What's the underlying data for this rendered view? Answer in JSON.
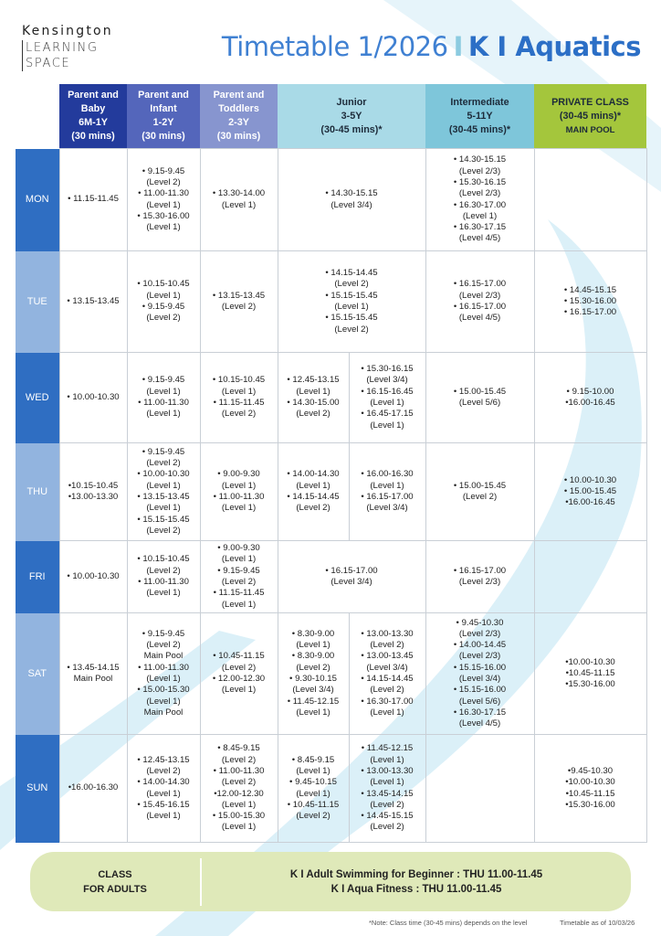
{
  "logo": {
    "line1": "Kensington",
    "line2": "LEARNING",
    "line3": "SPACE"
  },
  "title": {
    "main": "Timetable 1/2026",
    "separator": "I",
    "brand": "K I Aquatics"
  },
  "colors": {
    "title": "#3f80d2",
    "day_dark": "#2f6ec2",
    "day_light": "#92b4df",
    "parent_baby": "#233b9c",
    "parent_infant": "#5466bb",
    "parent_toddlers": "#8795cf",
    "junior": "#a9dae7",
    "intermediate": "#7ec6da",
    "private": "#a4c63c",
    "adults_box": "#dfe9b9"
  },
  "headers": [
    [
      "Parent and",
      "Baby",
      "6M-1Y",
      "(30 mins)"
    ],
    [
      "Parent and",
      "Infant",
      "1-2Y",
      "(30 mins)"
    ],
    [
      "Parent and",
      "Toddlers",
      "2-3Y",
      "(30 mins)"
    ],
    [
      "Junior",
      "3-5Y",
      "(30-45 mins)*"
    ],
    [
      "Intermediate",
      "5-11Y",
      "(30-45 mins)*"
    ],
    [
      "PRIVATE CLASS",
      "(30-45 mins)*",
      "MAIN POOL"
    ]
  ],
  "rows": [
    {
      "day": "MON",
      "cells": [
        [
          "• 11.15-11.45"
        ],
        [
          "• 9.15-9.45",
          "(Level 2)",
          "• 11.00-11.30",
          "(Level 1)",
          "• 15.30-16.00",
          "(Level 1)"
        ],
        [
          "• 13.30-14.00",
          "(Level 1)"
        ],
        [
          [
            "• 14.30-15.15",
            "(Level 3/4)"
          ]
        ],
        [
          "• 14.30-15.15",
          "(Level 2/3)",
          "• 15.30-16.15",
          "(Level 2/3)",
          "• 16.30-17.00",
          "(Level 1)",
          "• 16.30-17.15",
          "(Level 4/5)"
        ],
        []
      ]
    },
    {
      "day": "TUE",
      "cells": [
        [
          "• 13.15-13.45"
        ],
        [
          "• 10.15-10.45",
          "(Level 1)",
          "• 9.15-9.45",
          "(Level 2)"
        ],
        [
          "• 13.15-13.45",
          "(Level 2)"
        ],
        [
          [
            "• 14.15-14.45",
            "(Level 2)",
            "• 15.15-15.45",
            "(Level 1)",
            "• 15.15-15.45",
            "(Level 2)"
          ]
        ],
        [
          "• 16.15-17.00",
          "(Level 2/3)",
          "• 16.15-17.00",
          "(Level 4/5)"
        ],
        [
          "• 14.45-15.15",
          "• 15.30-16.00",
          "• 16.15-17.00"
        ]
      ]
    },
    {
      "day": "WED",
      "cells": [
        [
          "• 10.00-10.30"
        ],
        [
          "• 9.15-9.45",
          "(Level 1)",
          "• 11.00-11.30",
          "(Level 1)"
        ],
        [
          "• 10.15-10.45",
          "(Level 1)",
          "• 11.15-11.45",
          "(Level 2)"
        ],
        [
          [
            "• 12.45-13.15",
            "(Level 1)",
            "• 14.30-15.00",
            "(Level 2)"
          ],
          [
            "• 15.30-16.15",
            "(Level 3/4)",
            "• 16.15-16.45",
            "(Level 1)",
            "• 16.45-17.15",
            "(Level 1)"
          ]
        ],
        [
          "• 15.00-15.45",
          "(Level 5/6)"
        ],
        [
          "• 9.15-10.00",
          "•16.00-16.45"
        ]
      ]
    },
    {
      "day": "THU",
      "cells": [
        [
          "•10.15-10.45",
          "•13.00-13.30"
        ],
        [
          "• 9.15-9.45",
          "(Level 2)",
          "• 10.00-10.30",
          "(Level 1)",
          "• 13.15-13.45",
          "(Level 1)",
          "• 15.15-15.45",
          "(Level 2)"
        ],
        [
          "• 9.00-9.30",
          "(Level 1)",
          "• 11.00-11.30",
          "(Level 1)"
        ],
        [
          [
            "• 14.00-14.30",
            "(Level 1)",
            "• 14.15-14.45",
            "(Level 2)"
          ],
          [
            "• 16.00-16.30",
            "(Level 1)",
            "• 16.15-17.00",
            "(Level 3/4)"
          ]
        ],
        [
          "• 15.00-15.45",
          "(Level 2)"
        ],
        [
          "• 10.00-10.30",
          "• 15.00-15.45",
          "•16.00-16.45"
        ]
      ]
    },
    {
      "day": "FRI",
      "cells": [
        [
          "• 10.00-10.30"
        ],
        [
          "• 10.15-10.45",
          "(Level 2)",
          "• 11.00-11.30",
          "(Level 1)"
        ],
        [
          "• 9.00-9.30",
          "(Level 1)",
          "• 9.15-9.45",
          "(Level 2)",
          "• 11.15-11.45",
          "(Level 1)"
        ],
        [
          [
            "• 16.15-17.00",
            "(Level 3/4)"
          ]
        ],
        [
          "• 16.15-17.00",
          "(Level 2/3)"
        ],
        []
      ]
    },
    {
      "day": "SAT",
      "cells": [
        [
          "• 13.45-14.15",
          "Main Pool"
        ],
        [
          "• 9.15-9.45",
          "(Level 2)",
          "Main Pool",
          "• 11.00-11.30",
          "(Level 1)",
          "• 15.00-15.30",
          "(Level 1)",
          "Main Pool"
        ],
        [
          "• 10.45-11.15",
          "(Level 2)",
          "• 12.00-12.30",
          "(Level 1)"
        ],
        [
          [
            "• 8.30-9.00",
            "(Level 1)",
            "• 8.30-9.00",
            "(Level 2)",
            "• 9.30-10.15",
            "(Level 3/4)",
            "• 11.45-12.15",
            "(Level 1)"
          ],
          [
            "• 13.00-13.30",
            "(Level 2)",
            "• 13.00-13.45",
            "(Level 3/4)",
            "• 14.15-14.45",
            "(Level 2)",
            "• 16.30-17.00",
            "(Level 1)"
          ]
        ],
        [
          "• 9.45-10.30",
          "(Level 2/3)",
          "• 14.00-14.45",
          "(Level 2/3)",
          "• 15.15-16.00",
          "(Level 3/4)",
          "• 15.15-16.00",
          "(Level 5/6)",
          "• 16.30-17.15",
          "(Level 4/5)"
        ],
        [
          "•10.00-10.30",
          "•10.45-11.15",
          "•15.30-16.00"
        ]
      ]
    },
    {
      "day": "SUN",
      "cells": [
        [
          "•16.00-16.30"
        ],
        [
          "• 12.45-13.15",
          "(Level 2)",
          "• 14.00-14.30",
          "(Level 1)",
          "• 15.45-16.15",
          "(Level 1)"
        ],
        [
          "• 8.45-9.15",
          "(Level 2)",
          "• 11.00-11.30",
          "(Level 2)",
          "•12.00-12.30",
          "(Level 1)",
          "• 15.00-15.30",
          "(Level 1)"
        ],
        [
          [
            "• 8.45-9.15",
            "(Level 1)",
            "• 9.45-10.15",
            "(Level 1)",
            "• 10.45-11.15",
            "(Level 2)"
          ],
          [
            "• 11.45-12.15",
            "(Level 1)",
            "• 13.00-13.30",
            "(Level 1)",
            "• 13.45-14.15",
            "(Level 2)",
            "• 14.45-15.15",
            "(Level 2)"
          ]
        ],
        [],
        [
          "•9.45-10.30",
          "•10.00-10.30",
          "•10.45-11.15",
          "•15.30-16.00"
        ]
      ]
    }
  ],
  "adults": {
    "label_line1": "CLASS",
    "label_line2": "FOR ADULTS",
    "class1": "K I  Adult Swimming for Beginner : THU 11.00-11.45",
    "class2": "K I Aqua Fitness : THU 11.00-11.45"
  },
  "footer": {
    "note": "*Note: Class time (30-45 mins) depends on the level",
    "as_of": "Timetable as of 10/03/26"
  }
}
